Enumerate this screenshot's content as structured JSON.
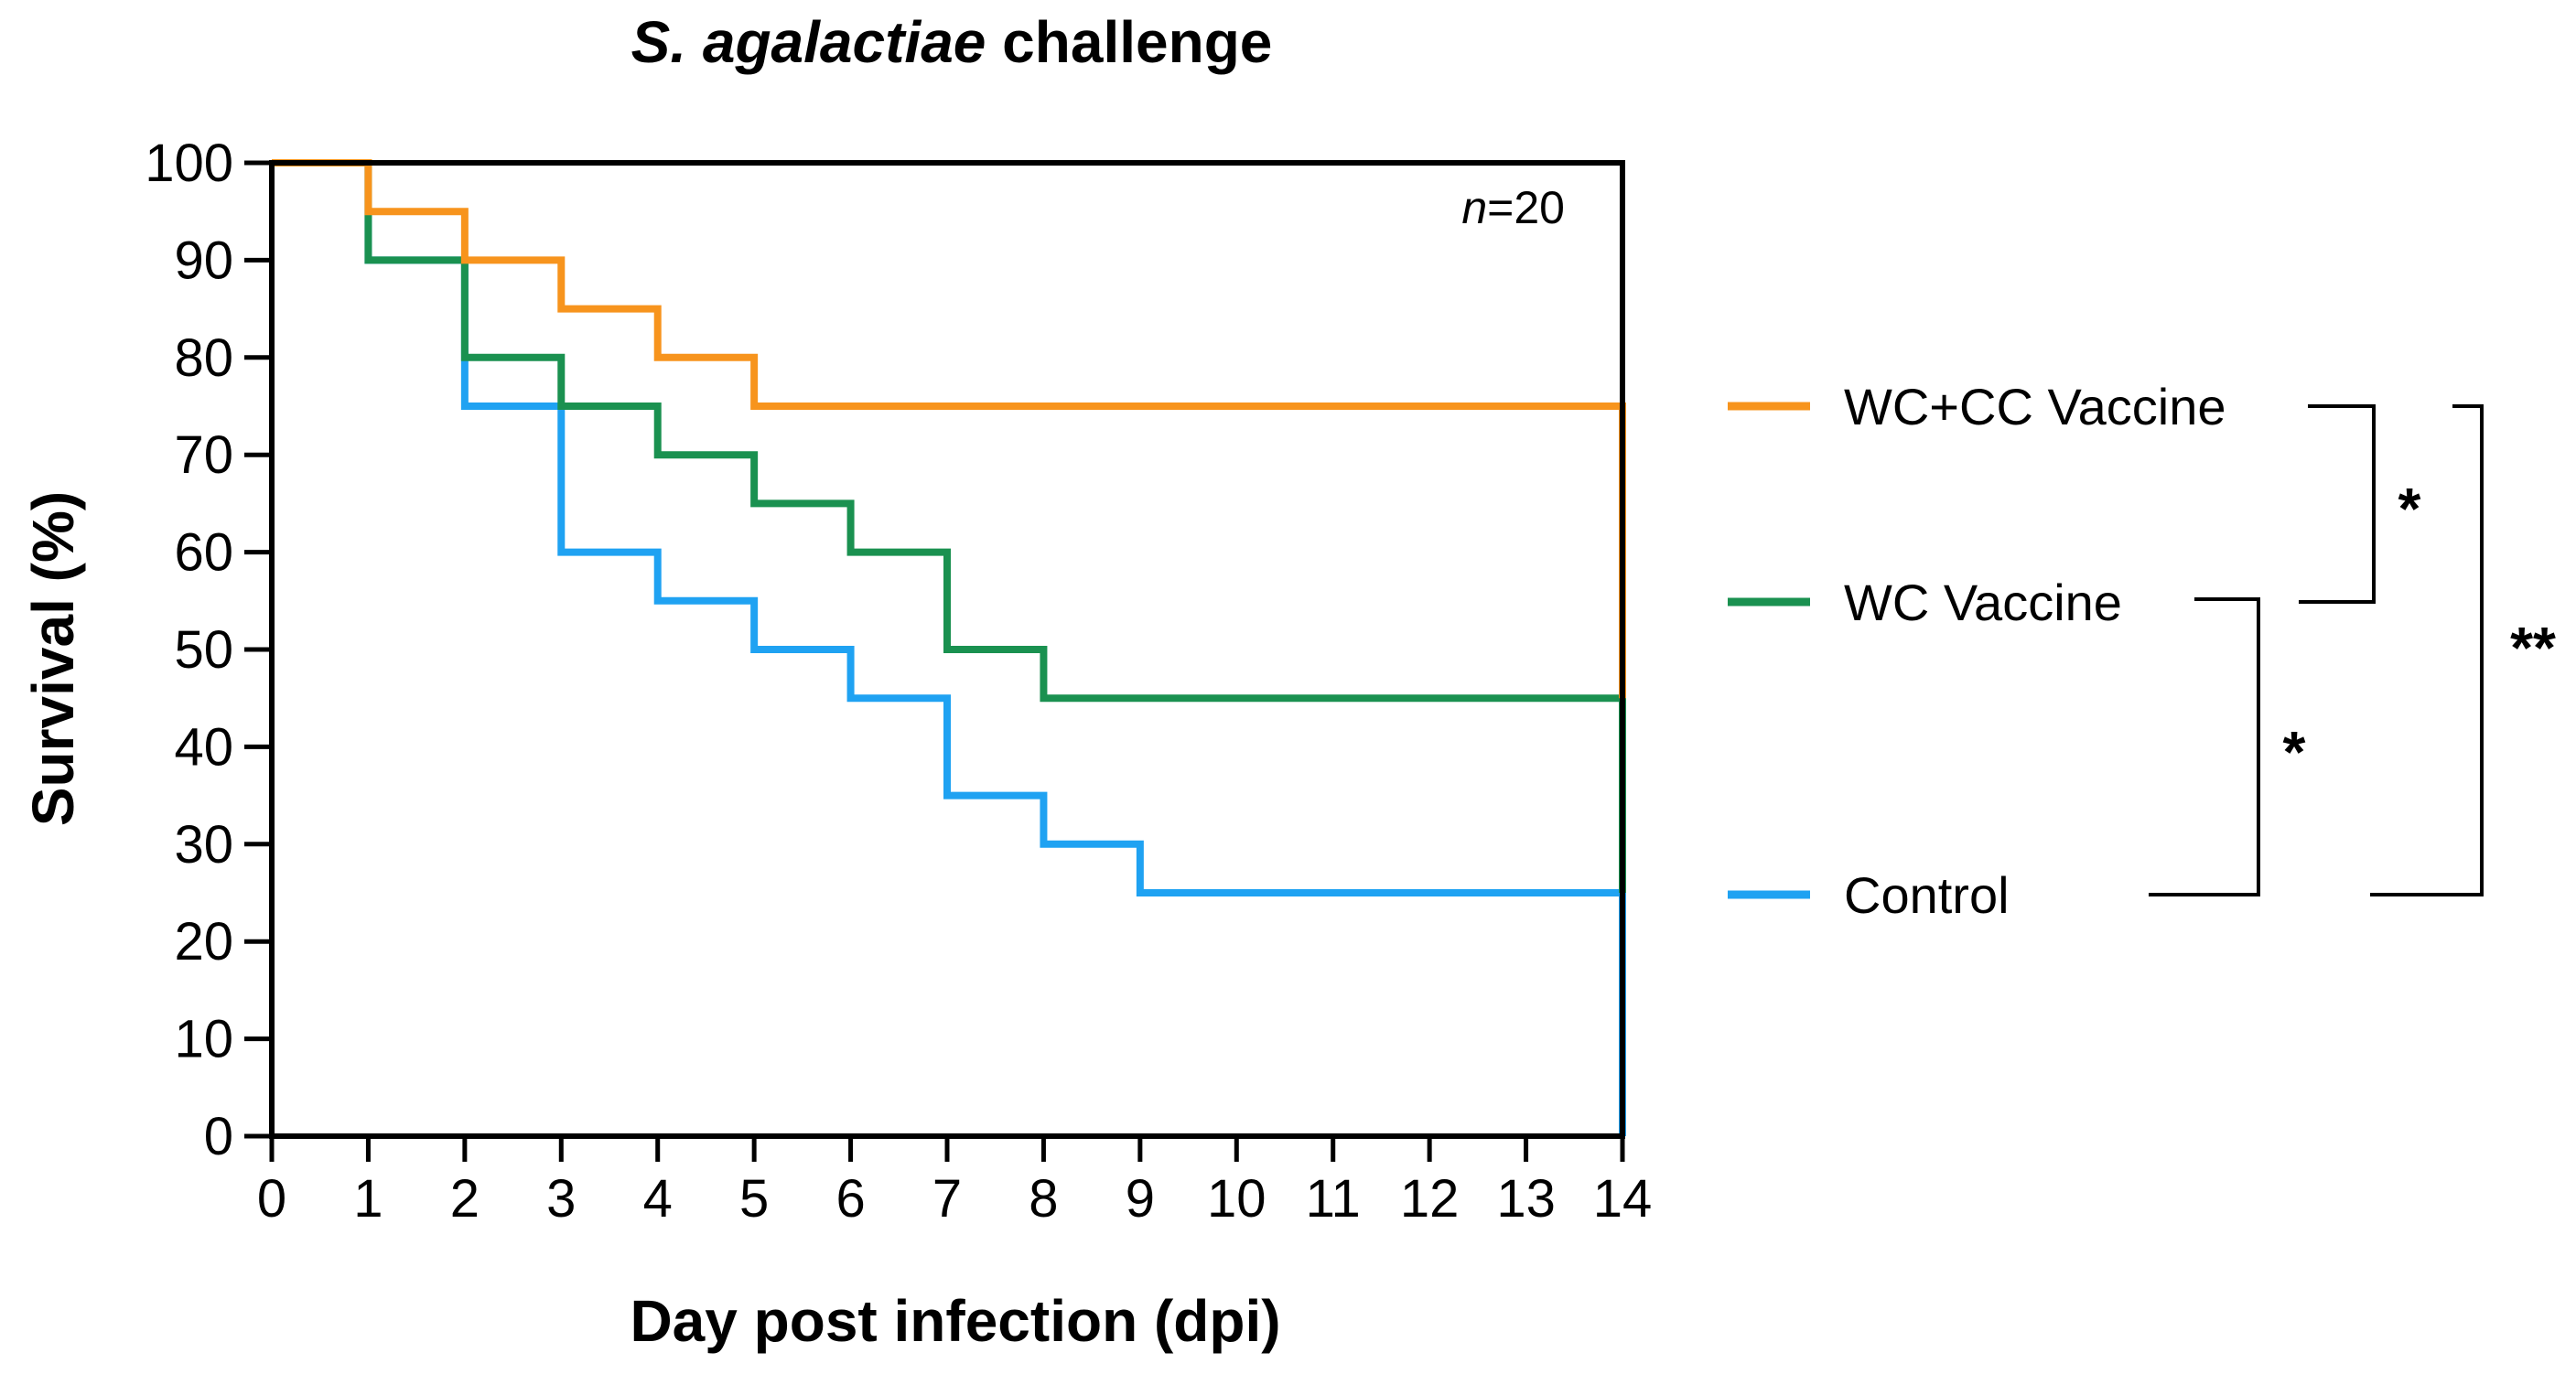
{
  "chart_data": {
    "type": "line",
    "subtype": "kaplan-meier step",
    "title_italic": "S. agalactiae",
    "title_rest": " challenge",
    "xlabel": "Day post infection (dpi)",
    "ylabel": "Survival (%)",
    "xlim": [
      0,
      14
    ],
    "ylim": [
      0,
      100
    ],
    "x_ticks": [
      "0",
      "1",
      "2",
      "3",
      "4",
      "5",
      "6",
      "7",
      "8",
      "9",
      "10",
      "11",
      "12",
      "13",
      "14"
    ],
    "y_ticks": [
      "0",
      "10",
      "20",
      "30",
      "40",
      "50",
      "60",
      "70",
      "80",
      "90",
      "100"
    ],
    "annotation_italic": "n",
    "annotation_rest": "=20",
    "series": [
      {
        "name": "WC+CC Vaccine",
        "color": "#F7941D",
        "x": [
          0,
          1,
          2,
          3,
          4,
          5,
          14
        ],
        "y": [
          100,
          95,
          90,
          85,
          80,
          75,
          45
        ]
      },
      {
        "name": "WC Vaccine",
        "color": "#1A9150",
        "x": [
          0,
          1,
          2,
          3,
          4,
          5,
          6,
          7,
          8,
          14
        ],
        "y": [
          100,
          90,
          80,
          75,
          70,
          65,
          60,
          50,
          45,
          25
        ]
      },
      {
        "name": "Control",
        "color": "#1FA2F2",
        "x": [
          0,
          1,
          2,
          3,
          4,
          5,
          6,
          7,
          8,
          9,
          14
        ],
        "y": [
          100,
          90,
          75,
          60,
          55,
          50,
          45,
          35,
          30,
          25,
          0
        ]
      }
    ],
    "significance": [
      {
        "pair": [
          "WC+CC Vaccine",
          "WC Vaccine"
        ],
        "label": "*"
      },
      {
        "pair": [
          "WC Vaccine",
          "Control"
        ],
        "label": "*"
      },
      {
        "pair": [
          "WC+CC Vaccine",
          "Control"
        ],
        "label": "**"
      }
    ]
  }
}
